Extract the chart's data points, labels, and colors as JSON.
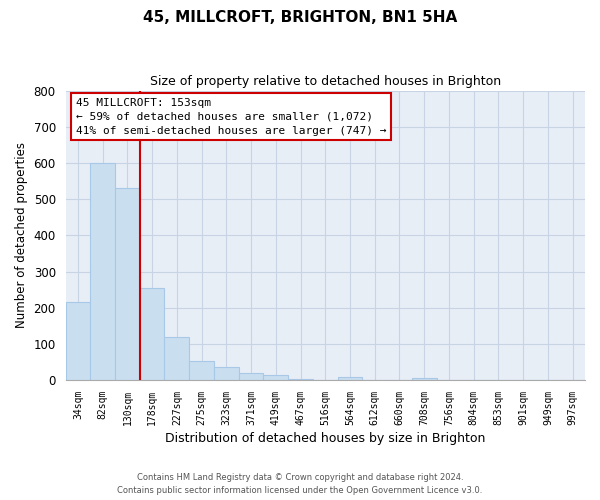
{
  "title": "45, MILLCROFT, BRIGHTON, BN1 5HA",
  "subtitle": "Size of property relative to detached houses in Brighton",
  "xlabel": "Distribution of detached houses by size in Brighton",
  "ylabel": "Number of detached properties",
  "bar_labels": [
    "34sqm",
    "82sqm",
    "130sqm",
    "178sqm",
    "227sqm",
    "275sqm",
    "323sqm",
    "371sqm",
    "419sqm",
    "467sqm",
    "516sqm",
    "564sqm",
    "612sqm",
    "660sqm",
    "708sqm",
    "756sqm",
    "804sqm",
    "853sqm",
    "901sqm",
    "949sqm",
    "997sqm"
  ],
  "bar_values": [
    215,
    600,
    530,
    255,
    118,
    52,
    35,
    20,
    13,
    2,
    0,
    8,
    0,
    0,
    7,
    0,
    0,
    0,
    0,
    0,
    0
  ],
  "bar_color": "#c9dff0",
  "bar_edge_color": "#a8c8e8",
  "vline_color": "#cc0000",
  "ylim": [
    0,
    800
  ],
  "yticks": [
    0,
    100,
    200,
    300,
    400,
    500,
    600,
    700,
    800
  ],
  "annotation_title": "45 MILLCROFT: 153sqm",
  "annotation_line1": "← 59% of detached houses are smaller (1,072)",
  "annotation_line2": "41% of semi-detached houses are larger (747) →",
  "annotation_box_color": "#ffffff",
  "annotation_border_color": "#cc0000",
  "grid_color": "#c8d4e4",
  "background_color": "#e8eef6",
  "footer1": "Contains HM Land Registry data © Crown copyright and database right 2024.",
  "footer2": "Contains public sector information licensed under the Open Government Licence v3.0."
}
